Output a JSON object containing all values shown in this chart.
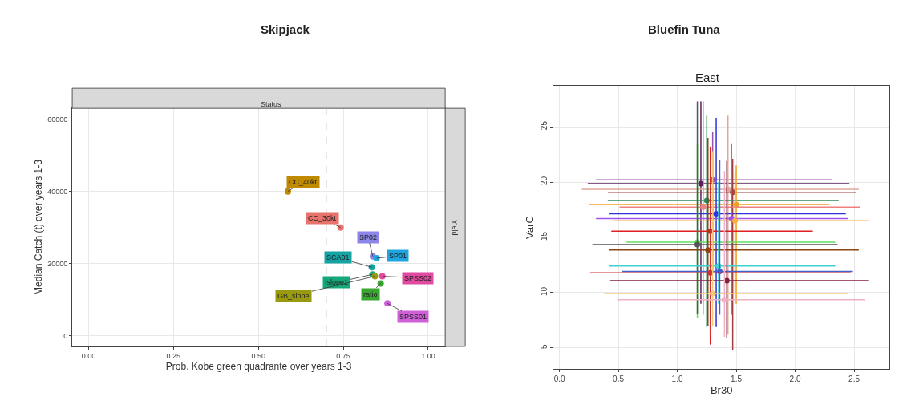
{
  "chart_data": [
    {
      "type": "scatter",
      "title": "Skipjack",
      "xlabel": "Prob. Kobe green quadrante over years 1-3",
      "ylabel": "Median Catch (t) over years 1-3",
      "annotations": [
        "Status",
        "Yield"
      ],
      "marker": "circle",
      "grid": true,
      "xlim": [
        -0.048,
        1.05
      ],
      "ylim": [
        -2900,
        62960
      ],
      "xticks": [
        {
          "value": 0,
          "label": "0.00"
        },
        {
          "value": 0.25,
          "label": "0.25"
        },
        {
          "value": 0.5,
          "label": "0.50"
        },
        {
          "value": 0.75,
          "label": "0.75"
        },
        {
          "value": 1,
          "label": "1.00"
        }
      ],
      "yticks": [
        0,
        20000,
        40000,
        60000
      ],
      "ref_lines": [
        {
          "axis": "x",
          "value": 0.7,
          "color": "#bbbbbb",
          "line_style": "dashed"
        }
      ],
      "series": [
        {
          "name": "CC_40kt",
          "color": "#c08a00",
          "x": [
            0.587
          ],
          "values": [
            40000
          ]
        },
        {
          "name": "CC_30kt",
          "color": "#e8736c",
          "x": [
            0.742
          ],
          "values": [
            30000
          ]
        },
        {
          "name": "SP02",
          "color": "#8c86e8",
          "x": [
            0.837
          ],
          "values": [
            22000
          ]
        },
        {
          "name": "SP01",
          "color": "#1ea5e0",
          "x": [
            0.848
          ],
          "values": [
            21500
          ]
        },
        {
          "name": "SCA01",
          "color": "#16a3a3",
          "x": [
            0.834
          ],
          "values": [
            19000
          ]
        },
        {
          "name": "Islope1",
          "color": "#16a87a",
          "x": [
            0.836
          ],
          "values": [
            17000
          ]
        },
        {
          "name": "GB_slope",
          "color": "#9a9a10",
          "x": [
            0.843
          ],
          "values": [
            16500
          ]
        },
        {
          "name": "SPSS02",
          "color": "#e04aa0",
          "x": [
            0.865
          ],
          "values": [
            16500
          ]
        },
        {
          "name": "ratio",
          "color": "#3aa830",
          "x": [
            0.86
          ],
          "values": [
            14500
          ]
        },
        {
          "name": "SPSS01",
          "color": "#d060d8",
          "x": [
            0.88
          ],
          "values": [
            9000
          ]
        }
      ]
    },
    {
      "type": "scatter",
      "title": "Bluefin Tuna",
      "subtitle": "East",
      "xlabel": "Br30",
      "ylabel": "VarC",
      "marker": "circle",
      "grid": true,
      "xlim": [
        -0.05,
        2.8
      ],
      "ylim": [
        3.1,
        28.7
      ],
      "xticks": [
        {
          "value": 0,
          "label": "0.0"
        },
        {
          "value": 0.5,
          "label": "0.5"
        },
        {
          "value": 1,
          "label": "1.0"
        },
        {
          "value": 1.5,
          "label": "1.5"
        },
        {
          "value": 2,
          "label": "2.0"
        },
        {
          "value": 2.5,
          "label": "2.5"
        }
      ],
      "yticks": [
        5,
        10,
        15,
        20,
        25
      ],
      "series": [
        {
          "color": "#9b4fb0",
          "x": [
            1.3
          ],
          "values": [
            20.2
          ],
          "xerrors": [
            [
              0.31,
              2.31
            ]
          ],
          "errors": [
            [
              12.0,
              24.5
            ]
          ]
        },
        {
          "color": "#5c1f5c",
          "x": [
            1.2
          ],
          "values": [
            19.85
          ],
          "xerrors": [
            [
              0.24,
              2.46
            ]
          ],
          "errors": [
            [
              9.0,
              27.3
            ]
          ]
        },
        {
          "color": "#e0a89a",
          "x": [
            1.43
          ],
          "values": [
            19.35
          ],
          "xerrors": [
            [
              0.19,
              2.54
            ]
          ],
          "errors": [
            [
              6.2,
              26.0
            ]
          ]
        },
        {
          "color": "#a0403f",
          "x": [
            1.47
          ],
          "values": [
            19.07
          ],
          "xerrors": [
            [
              0.41,
              2.52
            ]
          ],
          "errors": [
            [
              4.8,
              22.1
            ]
          ]
        },
        {
          "color": "#2e8b57",
          "x": [
            1.25
          ],
          "values": [
            18.34
          ],
          "xerrors": [
            [
              0.41,
              2.37
            ]
          ],
          "errors": [
            [
              6.9,
              26.0
            ]
          ]
        },
        {
          "color": "#f0a020",
          "x": [
            1.5
          ],
          "values": [
            17.98
          ],
          "xerrors": [
            [
              0.25,
              2.29
            ]
          ],
          "errors": [
            [
              9.0,
              21.5
            ]
          ]
        },
        {
          "color": "#f08080",
          "x": [
            1.22
          ],
          "values": [
            17.74
          ],
          "xerrors": [
            [
              0.51,
              2.55
            ]
          ],
          "errors": [
            [
              8.0,
              27.3
            ]
          ]
        },
        {
          "color": "#3030e0",
          "x": [
            1.33
          ],
          "values": [
            17.13
          ],
          "xerrors": [
            [
              0.42,
              2.43
            ]
          ],
          "errors": [
            [
              6.9,
              25.8
            ]
          ]
        },
        {
          "color": "#a050f0",
          "x": [
            1.46
          ],
          "values": [
            16.7
          ],
          "xerrors": [
            [
              0.31,
              2.45
            ]
          ],
          "errors": [
            [
              8.0,
              23.5
            ]
          ]
        },
        {
          "color": "#f5b040",
          "x": [
            1.49
          ],
          "values": [
            16.5
          ],
          "xerrors": [
            [
              0.46,
              2.62
            ]
          ],
          "errors": [
            [
              10.0,
              21.0
            ]
          ]
        },
        {
          "color": "#e02020",
          "x": [
            1.28
          ],
          "values": [
            15.56
          ],
          "xerrors": [
            [
              0.44,
              2.15
            ]
          ],
          "errors": [
            [
              5.3,
              23.2
            ]
          ]
        },
        {
          "color": "#60e060",
          "x": [
            1.17
          ],
          "values": [
            14.56
          ],
          "xerrors": [
            [
              0.57,
              2.34
            ]
          ],
          "errors": [
            [
              7.7,
              23.5
            ]
          ]
        },
        {
          "color": "#555555",
          "x": [
            1.17
          ],
          "values": [
            14.35
          ],
          "xerrors": [
            [
              0.28,
              2.36
            ]
          ],
          "errors": [
            [
              8.1,
              27.3
            ]
          ]
        },
        {
          "color": "#8b4513",
          "x": [
            1.26
          ],
          "values": [
            13.86
          ],
          "xerrors": [
            [
              0.42,
              2.54
            ]
          ],
          "errors": [
            [
              7.0,
              24.0
            ]
          ]
        },
        {
          "color": "#40d0d0",
          "x": [
            1.35
          ],
          "values": [
            12.41
          ],
          "xerrors": [
            [
              0.42,
              2.34
            ]
          ],
          "errors": [
            [
              9.0,
              20.0
            ]
          ]
        },
        {
          "color": "#4060d0",
          "x": [
            1.36
          ],
          "values": [
            11.92
          ],
          "xerrors": [
            [
              0.53,
              2.49
            ]
          ],
          "errors": [
            [
              8.0,
              22.0
            ]
          ]
        },
        {
          "color": "#d03030",
          "x": [
            1.28
          ],
          "values": [
            11.78
          ],
          "xerrors": [
            [
              0.26,
              2.47
            ]
          ],
          "errors": [
            [
              6.0,
              22.0
            ]
          ]
        },
        {
          "color": "#802040",
          "x": [
            1.42
          ],
          "values": [
            11.08
          ],
          "xerrors": [
            [
              0.43,
              2.62
            ]
          ],
          "errors": [
            [
              5.9,
              21.9
            ]
          ]
        },
        {
          "color": "#f5c880",
          "x": [
            1.3
          ],
          "values": [
            9.92
          ],
          "xerrors": [
            [
              0.38,
              2.45
            ]
          ],
          "errors": [
            [
              7.0,
              22.8
            ]
          ]
        },
        {
          "color": "#f0b0c0",
          "x": [
            1.4
          ],
          "values": [
            9.36
          ],
          "xerrors": [
            [
              0.49,
              2.59
            ]
          ],
          "errors": [
            [
              6.0,
              21.0
            ]
          ]
        }
      ]
    }
  ]
}
